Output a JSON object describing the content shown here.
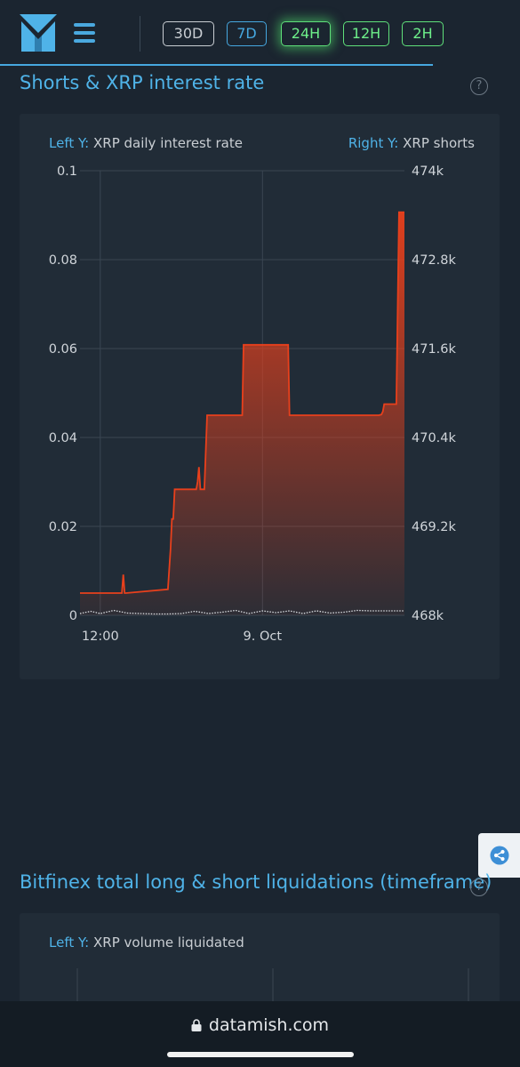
{
  "header": {
    "timeframes": [
      {
        "label": "30D",
        "state": "default"
      },
      {
        "label": "7D",
        "state": "link"
      },
      {
        "label": "24H",
        "state": "active"
      },
      {
        "label": "12H",
        "state": "available"
      },
      {
        "label": "2H",
        "state": "available"
      }
    ]
  },
  "sections": [
    {
      "title": "Shorts & XRP interest rate",
      "left_axis_key": "Left Y:",
      "left_axis_name": "XRP daily interest rate",
      "right_axis_key": "Right Y:",
      "right_axis_name": "XRP shorts",
      "help": "?"
    },
    {
      "title": "Bitfinex total long & short liquidations (timeframe)",
      "left_axis_key": "Left Y:",
      "left_axis_name": "XRP volume liquidated",
      "help": "?"
    }
  ],
  "chart_data": {
    "type": "area",
    "xlim": [
      0,
      24
    ],
    "x_ticks": [
      {
        "x": 1.5,
        "label": "12:00"
      },
      {
        "x": 13.5,
        "label": "9. Oct"
      }
    ],
    "left_axis": {
      "name": "XRP daily interest rate",
      "ylim": [
        0,
        0.1
      ],
      "ticks": [
        "0",
        "0.02",
        "0.04",
        "0.06",
        "0.08",
        "0.1"
      ],
      "tick_values": [
        0,
        0.02,
        0.04,
        0.06,
        0.08,
        0.1
      ]
    },
    "right_axis": {
      "name": "XRP shorts",
      "ylim": [
        468000,
        474000
      ],
      "ticks": [
        "468k",
        "469.2k",
        "470.4k",
        "471.6k",
        "472.8k",
        "474k"
      ],
      "tick_values": [
        468000,
        469200,
        470400,
        471600,
        472800,
        474000
      ]
    },
    "grid": true,
    "series": [
      {
        "name": "XRP shorts",
        "axis": "right",
        "color": "#e8401c",
        "x": [
          0,
          3.1,
          3.2,
          3.3,
          3.4,
          6.5,
          6.7,
          6.8,
          6.9,
          7.0,
          7.4,
          7.5,
          8.6,
          8.7,
          8.8,
          8.9,
          9.2,
          9.4,
          12.0,
          12.1,
          15.4,
          15.5,
          22.1,
          22.3,
          22.4,
          22.5,
          23.4,
          23.6,
          24.0
        ],
        "y": [
          468300,
          468300,
          468550,
          468300,
          468300,
          468350,
          468900,
          469300,
          469300,
          469700,
          469700,
          469700,
          469700,
          469800,
          470000,
          469700,
          469700,
          470700,
          470700,
          471650,
          471650,
          470700,
          470700,
          470710,
          470750,
          470850,
          470850,
          473440,
          473440
        ]
      },
      {
        "name": "XRP daily interest rate",
        "axis": "left",
        "color": "#d9dde1",
        "x": [
          0,
          0.8,
          1.5,
          2.5,
          3.5,
          4.5,
          5.5,
          6.5,
          7.5,
          8.5,
          9.5,
          10.5,
          11.5,
          12.5,
          13.5,
          14.5,
          15.5,
          16.5,
          17.5,
          18.5,
          19.5,
          20.5,
          21.5,
          22.5,
          24.0
        ],
        "y": [
          0.0004,
          0.0009,
          0.0004,
          0.0011,
          0.0005,
          0.0004,
          0.0003,
          0.0003,
          0.0004,
          0.0009,
          0.0004,
          0.0007,
          0.0011,
          0.0004,
          0.001,
          0.0006,
          0.001,
          0.0004,
          0.001,
          0.0005,
          0.0007,
          0.0011,
          0.001,
          0.001,
          0.001
        ]
      }
    ]
  },
  "share_icon": "share-icon",
  "footer": {
    "url": "datamish.com"
  }
}
